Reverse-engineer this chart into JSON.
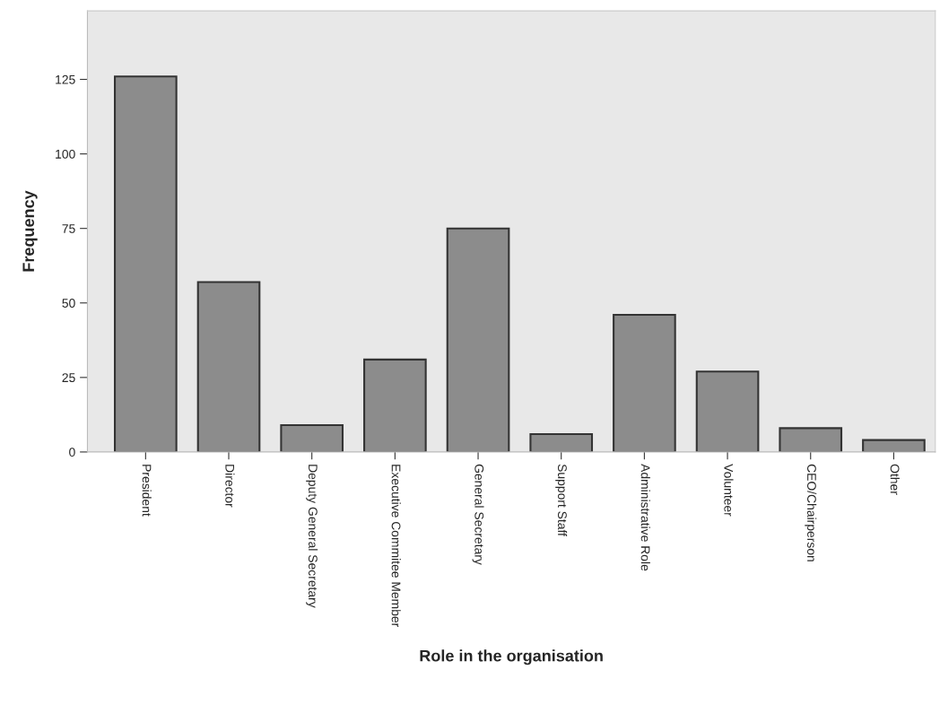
{
  "chart_data": {
    "type": "bar",
    "xlabel": "Role in the organisation",
    "ylabel": "Frequency",
    "categories": [
      "President",
      "Director",
      "Deputy General Secretary",
      "Executive Commitee Member",
      "General Secretary",
      "Support Staff",
      "Administrative Role",
      "Volunteer",
      "CEO/Chairperson",
      "Other"
    ],
    "values": [
      126,
      57,
      9,
      31,
      75,
      6,
      46,
      27,
      8,
      4
    ],
    "color": "#8c8c8c",
    "ylim": [
      0,
      148
    ],
    "yticks": [
      0,
      25,
      50,
      75,
      100,
      125
    ],
    "grid": false
  }
}
